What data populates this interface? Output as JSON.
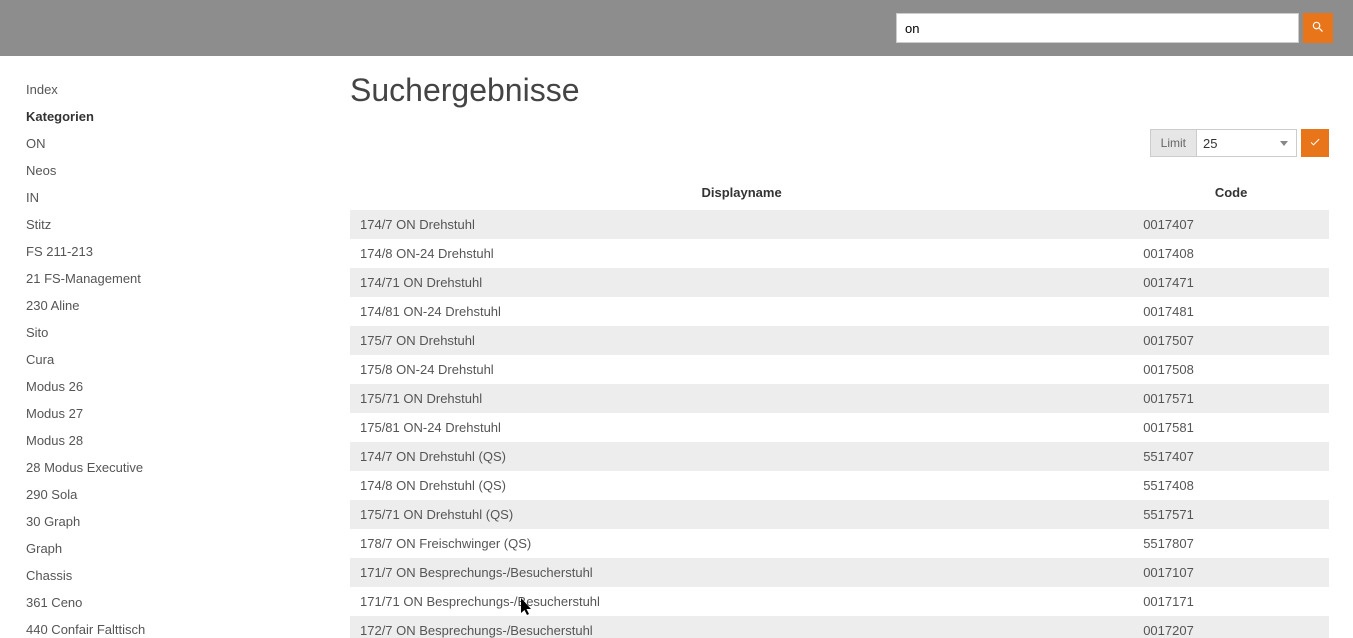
{
  "colors": {
    "header_bg": "#8d8d8d",
    "accent": "#e8751a",
    "row_stripe": "#ededed",
    "text": "#333333",
    "text_muted": "#555555",
    "border": "#cccccc"
  },
  "header": {
    "search_value": "on"
  },
  "sidebar": {
    "items": [
      {
        "label": "Index",
        "heading": false
      },
      {
        "label": "Kategorien",
        "heading": true
      },
      {
        "label": "ON",
        "heading": false
      },
      {
        "label": "Neos",
        "heading": false
      },
      {
        "label": "IN",
        "heading": false
      },
      {
        "label": "Stitz",
        "heading": false
      },
      {
        "label": "FS 211-213",
        "heading": false
      },
      {
        "label": "21 FS-Management",
        "heading": false
      },
      {
        "label": "230 Aline",
        "heading": false
      },
      {
        "label": "Sito",
        "heading": false
      },
      {
        "label": "Cura",
        "heading": false
      },
      {
        "label": "Modus 26",
        "heading": false
      },
      {
        "label": "Modus 27",
        "heading": false
      },
      {
        "label": "Modus 28",
        "heading": false
      },
      {
        "label": "28 Modus Executive",
        "heading": false
      },
      {
        "label": "290 Sola",
        "heading": false
      },
      {
        "label": "30 Graph",
        "heading": false
      },
      {
        "label": "Graph",
        "heading": false
      },
      {
        "label": "Chassis",
        "heading": false
      },
      {
        "label": "361 Ceno",
        "heading": false
      },
      {
        "label": "440 Confair Falttisch",
        "heading": false
      }
    ]
  },
  "main": {
    "title": "Suchergebnisse",
    "limit": {
      "label": "Limit",
      "value": "25"
    },
    "table": {
      "columns": [
        "Displayname",
        "Code"
      ],
      "rows": [
        {
          "name": "174/7 ON Drehstuhl",
          "code": "0017407"
        },
        {
          "name": "174/8 ON-24 Drehstuhl",
          "code": "0017408"
        },
        {
          "name": "174/71 ON Drehstuhl",
          "code": "0017471"
        },
        {
          "name": "174/81 ON-24 Drehstuhl",
          "code": "0017481"
        },
        {
          "name": "175/7 ON Drehstuhl",
          "code": "0017507"
        },
        {
          "name": "175/8 ON-24 Drehstuhl",
          "code": "0017508"
        },
        {
          "name": "175/71 ON Drehstuhl",
          "code": "0017571"
        },
        {
          "name": "175/81 ON-24 Drehstuhl",
          "code": "0017581"
        },
        {
          "name": "174/7 ON Drehstuhl (QS)",
          "code": "5517407"
        },
        {
          "name": "174/8 ON Drehstuhl (QS)",
          "code": "5517408"
        },
        {
          "name": "175/71 ON Drehstuhl (QS)",
          "code": "5517571"
        },
        {
          "name": "178/7 ON Freischwinger (QS)",
          "code": "5517807"
        },
        {
          "name": "171/7 ON Besprechungs-/Besucherstuhl",
          "code": "0017107"
        },
        {
          "name": "171/71 ON Besprechungs-/Besucherstuhl",
          "code": "0017171"
        },
        {
          "name": "172/7 ON Besprechungs-/Besucherstuhl",
          "code": "0017207"
        }
      ]
    }
  }
}
